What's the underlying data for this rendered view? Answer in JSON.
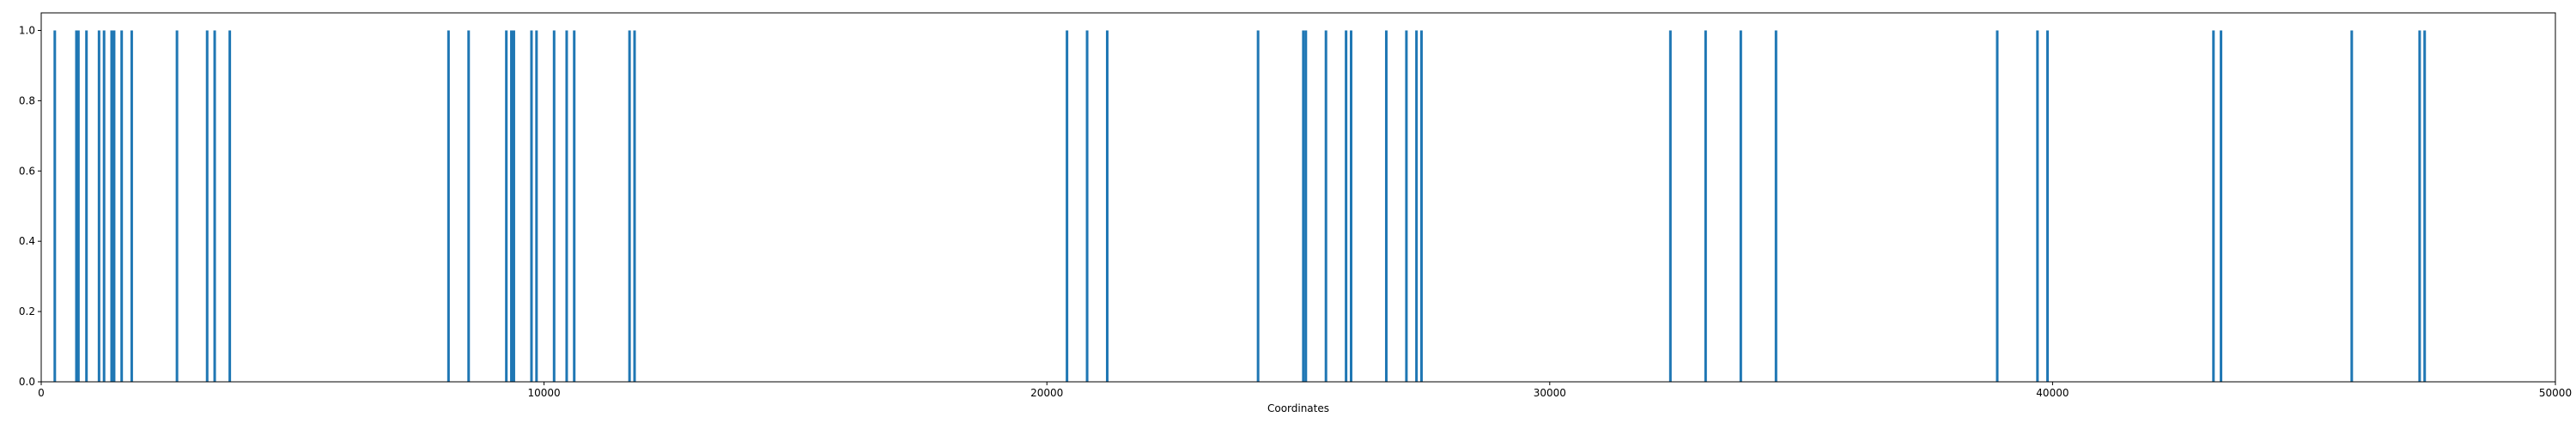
{
  "chart_data": {
    "type": "bar",
    "title": "",
    "xlabel": "Coordinates",
    "ylabel": "",
    "xlim": [
      0,
      50000
    ],
    "ylim": [
      0.0,
      1.05
    ],
    "grid": false,
    "color": "#1f77b4",
    "x_ticks": [
      0,
      10000,
      20000,
      30000,
      40000,
      50000
    ],
    "x_tick_labels": [
      "0",
      "10000",
      "20000",
      "30000",
      "40000",
      "50000"
    ],
    "y_ticks": [
      0.0,
      0.2,
      0.4,
      0.6,
      0.8,
      1.0
    ],
    "y_tick_labels": [
      "0.0",
      "0.2",
      "0.4",
      "0.6",
      "0.8",
      "1.0"
    ],
    "series": [
      {
        "x": [
          270,
          700,
          740,
          900,
          1150,
          1250,
          1400,
          1450,
          1600,
          1800,
          2700,
          3300,
          3450,
          3750,
          8100,
          8500,
          9250,
          9350,
          9400,
          9750,
          9850,
          10200,
          10450,
          10600,
          11700,
          11800,
          20400,
          20800,
          21200,
          24200,
          25100,
          25150,
          25550,
          25950,
          26050,
          26750,
          27150,
          27350,
          27450,
          32400,
          33100,
          33800,
          34500,
          38900,
          39700,
          39900,
          43200,
          43350,
          45950,
          47300,
          47400
        ],
        "values": [
          1,
          1,
          1,
          1,
          1,
          1,
          1,
          1,
          1,
          1,
          1,
          1,
          1,
          1,
          1,
          1,
          1,
          1,
          1,
          1,
          1,
          1,
          1,
          1,
          1,
          1,
          1,
          1,
          1,
          1,
          1,
          1,
          1,
          1,
          1,
          1,
          1,
          1,
          1,
          1,
          1,
          1,
          1,
          1,
          1,
          1,
          1,
          1,
          1,
          1,
          1
        ]
      }
    ]
  }
}
